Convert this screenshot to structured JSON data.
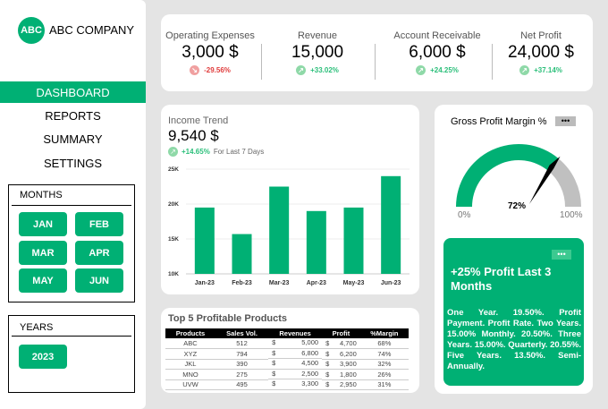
{
  "company": {
    "logo": "ABC",
    "name": "ABC COMPANY"
  },
  "nav": [
    "DASHBOARD",
    "REPORTS",
    "SUMMARY",
    "SETTINGS"
  ],
  "months": {
    "title": "MONTHS",
    "items": [
      "JAN",
      "FEB",
      "MAR",
      "APR",
      "MAY",
      "JUN"
    ]
  },
  "years": {
    "title": "YEARS",
    "items": [
      "2023"
    ]
  },
  "kpis": [
    {
      "label": "Operating Expenses",
      "value": "3,000 $",
      "change": "-29.56%",
      "direction": "down"
    },
    {
      "label": "Revenue",
      "value": "15,000",
      "change": "+33.02%",
      "direction": "up"
    },
    {
      "label": "Account Receivable",
      "value": "6,000 $",
      "change": "+24.25%",
      "direction": "up"
    },
    {
      "label": "Net Profit",
      "value": "24,000 $",
      "change": "+37.14%",
      "direction": "up"
    }
  ],
  "income": {
    "title": "Income Trend",
    "value": "9,540 $",
    "change": "+14.65%",
    "period": "For Last 7 Days"
  },
  "chart_data": {
    "type": "bar",
    "categories": [
      "Jan-23",
      "Feb-23",
      "Mar-23",
      "Apr-23",
      "May-23",
      "Jun-23"
    ],
    "values": [
      19500,
      15700,
      22500,
      19000,
      19500,
      24000
    ],
    "ylim": [
      10000,
      25000
    ],
    "yticks": [
      "10K",
      "15K",
      "20K",
      "25K"
    ],
    "grid": true,
    "color": "#00b074"
  },
  "gauge": {
    "title": "Gross Profit Margin %",
    "value": 72,
    "value_label": "72%",
    "min_label": "0%",
    "max_label": "100%",
    "menu": "•••"
  },
  "products": {
    "title": "Top 5 Profitable Products",
    "headers": [
      "Products",
      "Sales Vol.",
      "Revenues",
      "Profit",
      "%Margin"
    ],
    "rows": [
      [
        "ABC",
        "512",
        "5,000",
        "4,700",
        "68%"
      ],
      [
        "XYZ",
        "794",
        "6,800",
        "6,200",
        "74%"
      ],
      [
        "JKL",
        "390",
        "4,500",
        "3,900",
        "32%"
      ],
      [
        "MNO",
        "275",
        "2,500",
        "1,800",
        "26%"
      ],
      [
        "UVW",
        "495",
        "3,300",
        "2,950",
        "31%"
      ]
    ],
    "currency": "$"
  },
  "promo": {
    "menu": "•••",
    "title": "+25% Profit Last 3 Months",
    "body": "One Year. 19.50%. Profit Payment. Profit Rate. Two Years. 15.00% Monthly. 20.50%. Three Years. 15.00%. Quarterly. 20.55%. Five Years. 13.50%. Semi-Annually."
  },
  "colors": {
    "accent": "#00b074",
    "negative": "#e03c3c",
    "positive": "#2bbf7a"
  }
}
